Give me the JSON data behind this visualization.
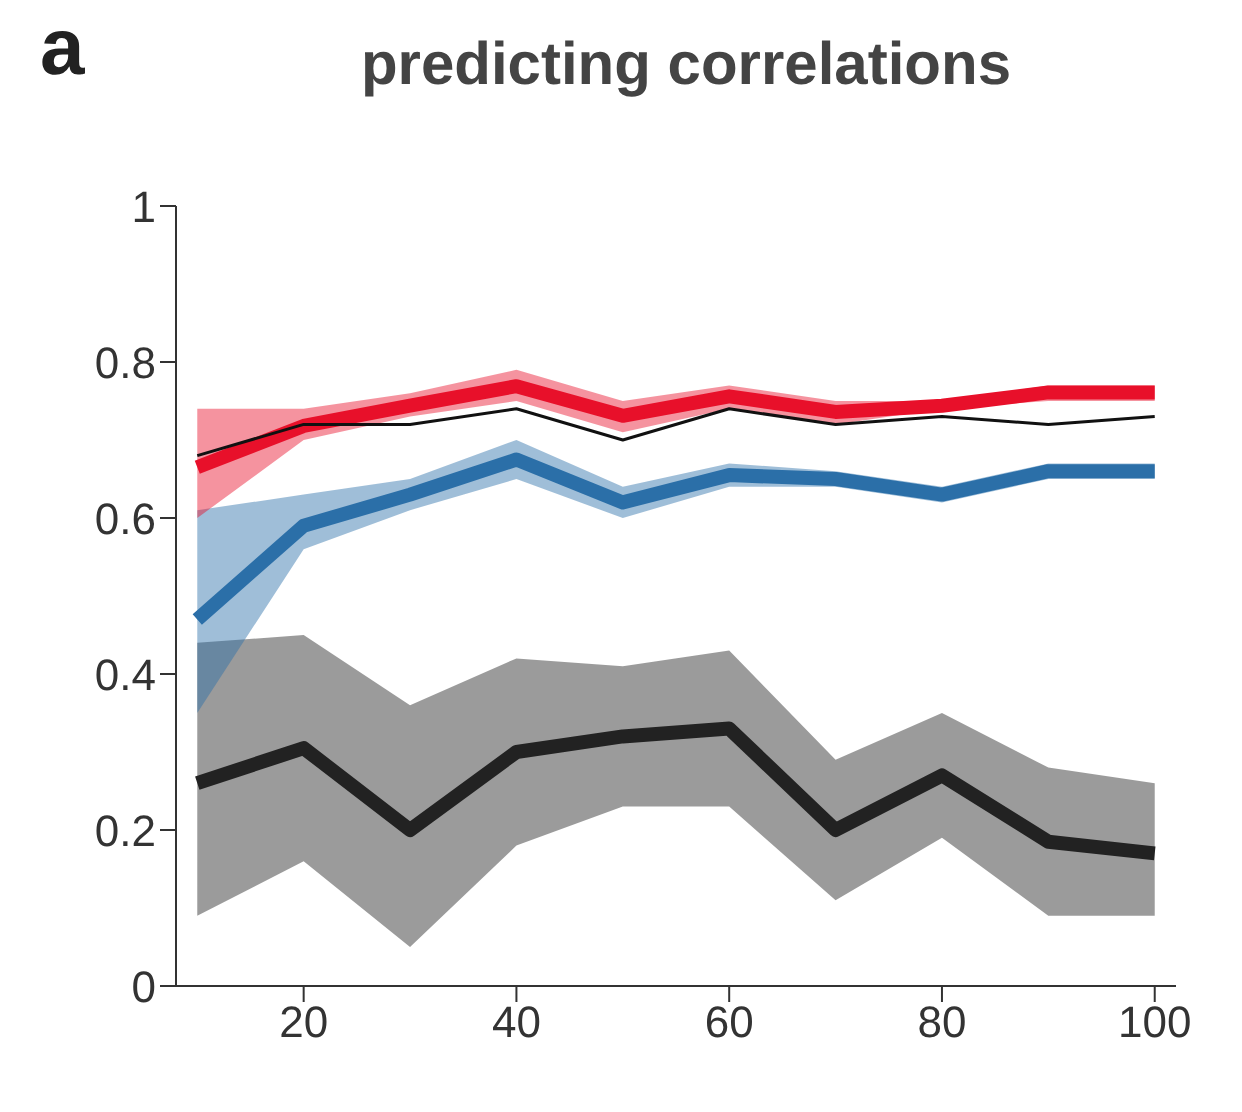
{
  "chart_data": {
    "type": "line",
    "title": "predicting correlations",
    "annotations": [
      "a"
    ],
    "x": [
      10,
      20,
      30,
      40,
      50,
      60,
      70,
      80,
      90,
      100
    ],
    "series": [
      {
        "color": "#222222",
        "values": [
          0.26,
          0.305,
          0.2,
          0.3,
          0.32,
          0.33,
          0.2,
          0.27,
          0.185,
          0.17
        ],
        "lower": [
          0.09,
          0.16,
          0.05,
          0.18,
          0.23,
          0.23,
          0.11,
          0.19,
          0.09,
          0.09
        ],
        "upper": [
          0.44,
          0.45,
          0.36,
          0.42,
          0.41,
          0.43,
          0.29,
          0.35,
          0.28,
          0.26
        ]
      },
      {
        "color": "#2b6fa8",
        "values": [
          0.47,
          0.59,
          0.63,
          0.675,
          0.62,
          0.655,
          0.65,
          0.63,
          0.66,
          0.66
        ],
        "lower": [
          0.35,
          0.56,
          0.61,
          0.65,
          0.6,
          0.64,
          0.64,
          0.62,
          0.65,
          0.65
        ],
        "upper": [
          0.61,
          0.63,
          0.65,
          0.7,
          0.64,
          0.67,
          0.66,
          0.64,
          0.67,
          0.67
        ]
      },
      {
        "color": "#e8102a",
        "values": [
          0.665,
          0.718,
          0.744,
          0.769,
          0.731,
          0.756,
          0.736,
          0.744,
          0.761,
          0.761
        ],
        "lower": [
          0.6,
          0.7,
          0.73,
          0.75,
          0.71,
          0.74,
          0.72,
          0.74,
          0.75,
          0.75
        ],
        "upper": [
          0.74,
          0.74,
          0.76,
          0.79,
          0.75,
          0.77,
          0.75,
          0.75,
          0.77,
          0.77
        ]
      },
      {
        "color": "#111111",
        "values": [
          0.68,
          0.72,
          0.72,
          0.74,
          0.7,
          0.74,
          0.72,
          0.73,
          0.72,
          0.73
        ]
      }
    ],
    "xlim": [
      8,
      102
    ],
    "xticks": [
      20,
      40,
      60,
      80,
      100
    ],
    "ylim": [
      0,
      1
    ],
    "yticks": [
      0,
      0.2,
      0.4,
      0.6,
      0.8,
      1
    ],
    "grid": false,
    "legend": false,
    "marker": "none",
    "line_style": "solid"
  }
}
